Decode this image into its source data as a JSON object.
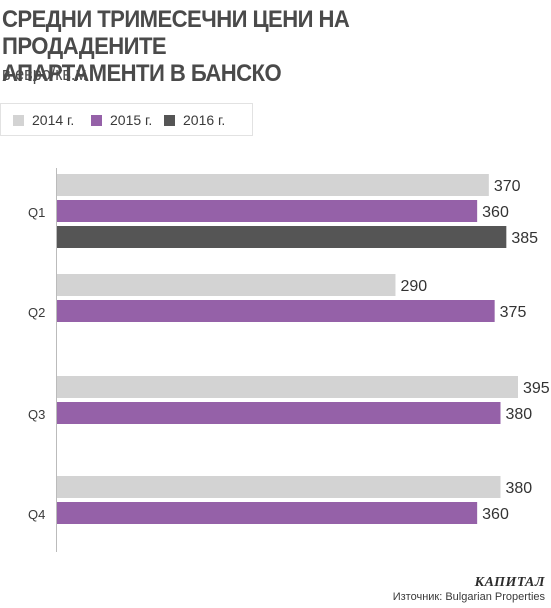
{
  "title_line1": "СРЕДНИ ТРИМЕСЕЧНИ ЦЕНИ НА ПРОДАДЕНИТЕ",
  "title_line2": "АПАРТАМЕНТИ В БАНСКО",
  "subtitle": "в евро/кв.м",
  "brand": "КАПИТАЛ",
  "source": "Източник: Bulgarian Properties",
  "colors": {
    "2014": "#d3d3d3",
    "2015": "#9561a8",
    "2016": "#555555"
  },
  "chart_data": {
    "type": "bar",
    "orientation": "horizontal",
    "title": "СРЕДНИ ТРИМЕСЕЧНИ ЦЕНИ НА ПРОДАДЕНИТЕ АПАРТАМЕНТИ В БАНСКО",
    "subtitle": "в евро/кв.м",
    "categories": [
      "Q1",
      "Q2",
      "Q3",
      "Q4"
    ],
    "series": [
      {
        "name": "2014 г.",
        "color": "#d3d3d3",
        "values": [
          370,
          290,
          395,
          380
        ]
      },
      {
        "name": "2015 г.",
        "color": "#9561a8",
        "values": [
          360,
          375,
          380,
          360
        ]
      },
      {
        "name": "2016 г.",
        "color": "#555555",
        "values": [
          385,
          null,
          null,
          null
        ]
      }
    ],
    "xlim": [
      0,
      395
    ],
    "legend_position": "top-left",
    "grid": false,
    "data_labels": true
  }
}
